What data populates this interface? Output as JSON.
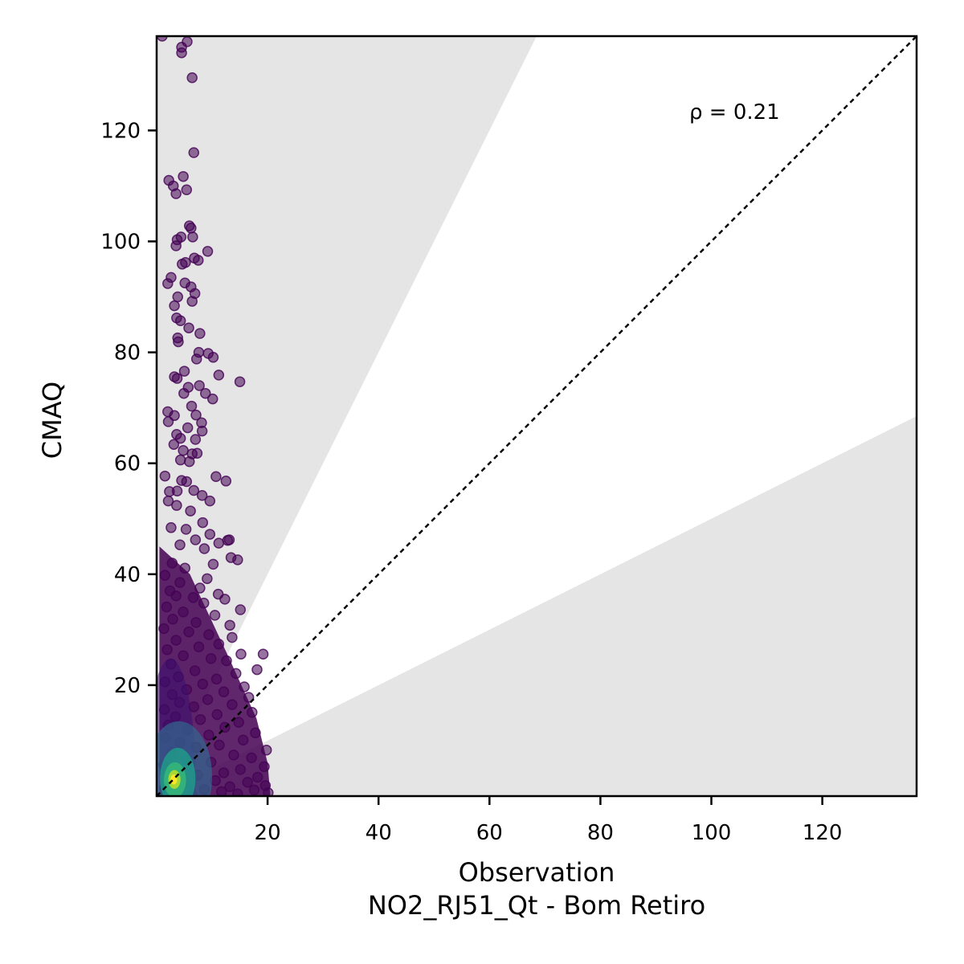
{
  "chart_data": {
    "type": "scatter",
    "title": "",
    "xlabel": "Observation",
    "xlabel_sub": "NO2_RJ51_Qt - Bom Retiro",
    "ylabel": "CMAQ",
    "xlim": [
      0,
      137
    ],
    "ylim": [
      0,
      137
    ],
    "xticks": [
      20,
      40,
      60,
      80,
      100,
      120
    ],
    "yticks": [
      20,
      40,
      60,
      80,
      100,
      120
    ],
    "annotation": "ρ = 0.21",
    "reference_line": "1:1",
    "shaded_band": {
      "lower_slope": 0.5,
      "upper_slope": 2.0
    },
    "colormap": "viridis",
    "colors": {
      "band": "#e5e5e5",
      "point_low": "#440154",
      "point_high": "#fde725",
      "axis": "#000000"
    },
    "points": [
      [
        1,
        137
      ],
      [
        5.5,
        136
      ],
      [
        4.5,
        135
      ],
      [
        4.5,
        134
      ],
      [
        6.4,
        129.5
      ],
      [
        6.7,
        116
      ],
      [
        2.2,
        111
      ],
      [
        4.8,
        111.7
      ],
      [
        3,
        110
      ],
      [
        3.5,
        108.6
      ],
      [
        5.4,
        109.3
      ],
      [
        5.9,
        102.8
      ],
      [
        6.2,
        102.4
      ],
      [
        6.5,
        100.8
      ],
      [
        3.7,
        100.3
      ],
      [
        4.4,
        100.8
      ],
      [
        3.5,
        99.2
      ],
      [
        9.2,
        98.2
      ],
      [
        6.8,
        97
      ],
      [
        7.5,
        96.6
      ],
      [
        5.2,
        96.2
      ],
      [
        4.6,
        95.9
      ],
      [
        2.6,
        93.5
      ],
      [
        2,
        92.4
      ],
      [
        5.1,
        92.5
      ],
      [
        6.2,
        91.8
      ],
      [
        6.9,
        90.6
      ],
      [
        3.8,
        90
      ],
      [
        6.4,
        89.2
      ],
      [
        3.2,
        88.4
      ],
      [
        3.6,
        86.2
      ],
      [
        4.3,
        85.7
      ],
      [
        5.8,
        84.4
      ],
      [
        7.8,
        83.4
      ],
      [
        3.8,
        82.6
      ],
      [
        3.9,
        81.9
      ],
      [
        7.6,
        80
      ],
      [
        9.3,
        79.8
      ],
      [
        7.2,
        78.8
      ],
      [
        10.2,
        79.1
      ],
      [
        5,
        76.6
      ],
      [
        3.2,
        75.6
      ],
      [
        3.7,
        75.3
      ],
      [
        11.2,
        75.9
      ],
      [
        15,
        74.7
      ],
      [
        5.7,
        73.7
      ],
      [
        7.7,
        74
      ],
      [
        4.9,
        72.6
      ],
      [
        8.8,
        72.6
      ],
      [
        10.1,
        71.6
      ],
      [
        6.3,
        70.3
      ],
      [
        2,
        69.3
      ],
      [
        3.2,
        68.6
      ],
      [
        7.1,
        68.7
      ],
      [
        8.1,
        67.3
      ],
      [
        2.1,
        67.5
      ],
      [
        5.6,
        66.4
      ],
      [
        3.6,
        65.2
      ],
      [
        4.3,
        64.5
      ],
      [
        7,
        64.3
      ],
      [
        8.2,
        65.8
      ],
      [
        3.1,
        63.4
      ],
      [
        4.8,
        62.3
      ],
      [
        6.4,
        61.7
      ],
      [
        7.3,
        61.8
      ],
      [
        4.3,
        60.6
      ],
      [
        5.9,
        60.3
      ],
      [
        1.5,
        57.7
      ],
      [
        10.7,
        57.6
      ],
      [
        12.5,
        56.8
      ],
      [
        4.5,
        56.9
      ],
      [
        5.4,
        56.7
      ],
      [
        2.3,
        54.9
      ],
      [
        3.7,
        55
      ],
      [
        6.7,
        55.1
      ],
      [
        8.2,
        54.2
      ],
      [
        2.1,
        53.2
      ],
      [
        9.6,
        53.2
      ],
      [
        3.6,
        52.4
      ],
      [
        6.1,
        51.4
      ],
      [
        8.3,
        49.3
      ],
      [
        2.6,
        48.4
      ],
      [
        5.3,
        48.1
      ],
      [
        9.6,
        47.2
      ],
      [
        7,
        46.2
      ],
      [
        12.8,
        46.1
      ],
      [
        13.1,
        46.2
      ],
      [
        11.2,
        45.6
      ],
      [
        4.2,
        45.3
      ],
      [
        8.6,
        44.6
      ],
      [
        13.4,
        43
      ],
      [
        14.6,
        42.6
      ],
      [
        2.8,
        42
      ],
      [
        10.2,
        41.8
      ],
      [
        5.1,
        41.1
      ],
      [
        1.5,
        39.8
      ],
      [
        9.1,
        39.2
      ],
      [
        4.2,
        38.5
      ],
      [
        7.8,
        37.5
      ],
      [
        2.4,
        37
      ],
      [
        11.1,
        36.4
      ],
      [
        3.5,
        36.1
      ],
      [
        6.6,
        35.8
      ],
      [
        12.3,
        35.5
      ],
      [
        8.5,
        34.8
      ],
      [
        1.8,
        34.1
      ],
      [
        15.1,
        33.6
      ],
      [
        4.8,
        33.2
      ],
      [
        10.5,
        32.6
      ],
      [
        2.9,
        31.9
      ],
      [
        7.1,
        31.3
      ],
      [
        13.2,
        30.8
      ],
      [
        1.3,
        30.2
      ],
      [
        5.8,
        29.6
      ],
      [
        9.4,
        29.1
      ],
      [
        13.6,
        28.6
      ],
      [
        3.5,
        28.1
      ],
      [
        11.2,
        27.4
      ],
      [
        7.6,
        26.9
      ],
      [
        1.9,
        26.4
      ],
      [
        19.2,
        25.6
      ],
      [
        15.2,
        25.6
      ],
      [
        4.8,
        25.3
      ],
      [
        9.8,
        24.8
      ],
      [
        12.6,
        24.4
      ],
      [
        2.6,
        23.8
      ],
      [
        18.1,
        22.8
      ],
      [
        6.9,
        22.6
      ],
      [
        14.3,
        22.1
      ],
      [
        3.9,
        21.5
      ],
      [
        10.8,
        21.1
      ],
      [
        1.5,
        20.6
      ],
      [
        8.3,
        20.2
      ],
      [
        15.8,
        19.7
      ],
      [
        5.4,
        19.2
      ],
      [
        12.1,
        18.8
      ],
      [
        2.8,
        18.3
      ],
      [
        16.6,
        17.8
      ],
      [
        9.2,
        17.4
      ],
      [
        4.1,
        16.9
      ],
      [
        13.6,
        16.5
      ],
      [
        6.7,
        16.1
      ],
      [
        1.4,
        15.6
      ],
      [
        17.2,
        15.1
      ],
      [
        10.9,
        14.7
      ],
      [
        3.4,
        14.3
      ],
      [
        7.9,
        13.8
      ],
      [
        14.8,
        13.3
      ],
      [
        2.1,
        12.8
      ],
      [
        12.3,
        12.4
      ],
      [
        5.6,
        11.9
      ],
      [
        17.8,
        11.4
      ],
      [
        9.4,
        11
      ],
      [
        1.6,
        10.5
      ],
      [
        15.6,
        10.1
      ],
      [
        4.2,
        9.6
      ],
      [
        11.3,
        9.2
      ],
      [
        7.1,
        8.8
      ],
      [
        19.8,
        8.3
      ],
      [
        2.7,
        7.9
      ],
      [
        13.9,
        7.4
      ],
      [
        17.1,
        6.9
      ],
      [
        5.3,
        6.5
      ],
      [
        9.8,
        6.1
      ],
      [
        1.3,
        5.6
      ],
      [
        19.4,
        5.3
      ],
      [
        15.1,
        4.8
      ],
      [
        3.6,
        4.6
      ],
      [
        12.1,
        4.2
      ],
      [
        7.4,
        3.8
      ],
      [
        18.2,
        3.4
      ],
      [
        2.3,
        3.1
      ],
      [
        10.6,
        2.8
      ],
      [
        16.4,
        2.5
      ],
      [
        5.1,
        2.2
      ],
      [
        19.6,
        1.9
      ],
      [
        13.2,
        1.7
      ],
      [
        1.4,
        1.4
      ],
      [
        8.6,
        1.2
      ],
      [
        17.6,
        1.1
      ],
      [
        4.2,
        0.9
      ],
      [
        11.7,
        0.8
      ],
      [
        20.1,
        0.6
      ],
      [
        6.3,
        0.5
      ],
      [
        14.6,
        0.4
      ]
    ],
    "density_cloud": [
      {
        "x": 2.5,
        "y": 2.8,
        "rx": 4.5,
        "ry": 22,
        "color": "#3b0f70",
        "opacity": 0.55
      },
      {
        "x": 4,
        "y": 3.5,
        "rx": 6,
        "ry": 10,
        "color": "#31688e",
        "opacity": 0.7
      },
      {
        "x": 3.8,
        "y": 3.2,
        "rx": 3.2,
        "ry": 5.5,
        "color": "#1f9e89",
        "opacity": 0.8
      },
      {
        "x": 3.3,
        "y": 2.9,
        "rx": 2,
        "ry": 3.2,
        "color": "#35b779",
        "opacity": 0.85
      },
      {
        "x": 3.2,
        "y": 3,
        "rx": 1.1,
        "ry": 1.7,
        "color": "#b5de2b",
        "opacity": 0.9
      },
      {
        "x": 3.1,
        "y": 3,
        "rx": 0.6,
        "ry": 0.9,
        "color": "#fde725",
        "opacity": 1
      }
    ]
  }
}
